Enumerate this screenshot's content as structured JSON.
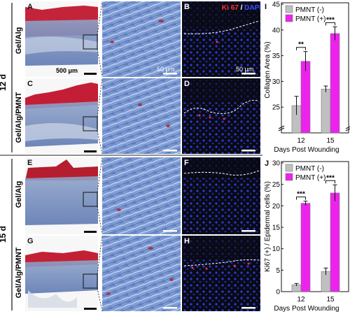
{
  "figure": {
    "group_top": "12 d",
    "group_bottom": "15 d",
    "row_labels": [
      "Gel/Alg",
      "Gel/Alg/PMNT",
      "Gel/Alg",
      "Gel/Alg/PMNT"
    ],
    "panel_letters": [
      "A",
      "B",
      "C",
      "D",
      "E",
      "F",
      "G",
      "H",
      "I",
      "J"
    ],
    "scale_bars": {
      "overview": "500 μm",
      "zoom": "50 μm",
      "fluor": "50 μm"
    },
    "stain_title": {
      "part1": "Ki 67",
      "sep": " / ",
      "part2": "DAPI"
    },
    "colors": {
      "ki67": "#ff3030",
      "dapi": "#3a4cff",
      "pmnt_neg": "#c0c0c0",
      "pmnt_pos": "#ee22ee"
    }
  },
  "chart_data": [
    {
      "type": "bar",
      "panel": "I",
      "ylabel": "Collagen Area (%)",
      "xlabel": "Days Post Wounding",
      "categories": [
        "12",
        "15"
      ],
      "series": [
        {
          "name": "PMNT (-)",
          "values": [
            25.3,
            28.5
          ],
          "errors": [
            1.8,
            0.6
          ]
        },
        {
          "name": "PMNT (+)",
          "values": [
            33.9,
            39.3
          ],
          "errors": [
            1.9,
            1.3
          ]
        }
      ],
      "ylim": [
        20,
        45
      ],
      "yticks": [
        20,
        25,
        30,
        35,
        40,
        45
      ],
      "axis_break": "20",
      "significance": [
        "**",
        "***"
      ],
      "legend": "top-left"
    },
    {
      "type": "bar",
      "panel": "J",
      "ylabel": "Ki67 (+) / Epidermal cells (%)",
      "xlabel": "Days Post Wounding",
      "categories": [
        "12",
        "15"
      ],
      "series": [
        {
          "name": "PMNT (-)",
          "values": [
            1.6,
            4.7
          ],
          "errors": [
            0.3,
            0.8
          ]
        },
        {
          "name": "PMNT (+)",
          "values": [
            20.6,
            23.0
          ],
          "errors": [
            0.5,
            1.9
          ]
        }
      ],
      "ylim": [
        0,
        30
      ],
      "yticks": [
        0,
        5,
        10,
        15,
        20,
        25,
        30
      ],
      "significance": [
        "***",
        "***"
      ],
      "legend": "top-left"
    }
  ]
}
